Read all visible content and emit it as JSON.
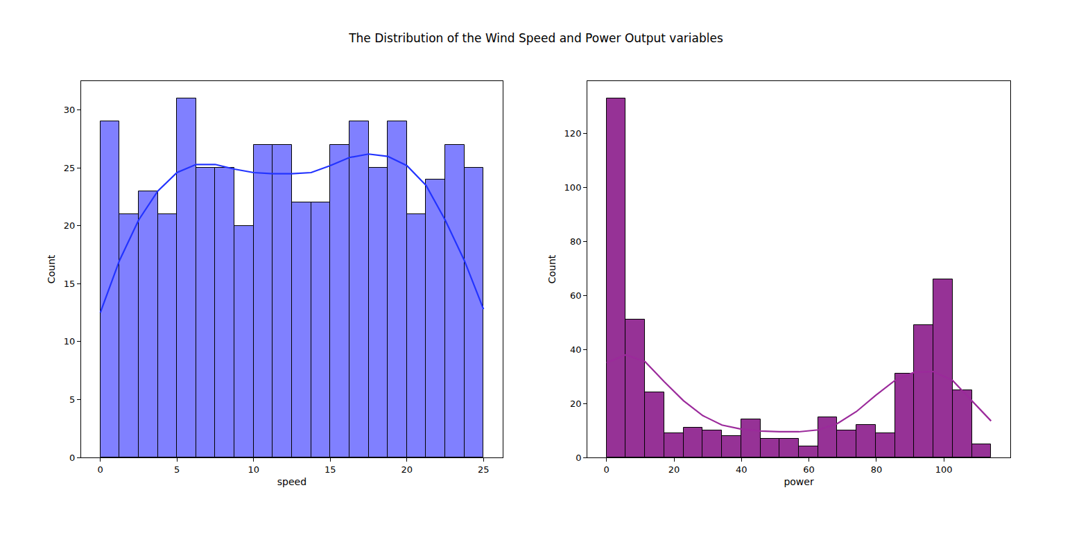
{
  "title": "The Distribution of the Wind Speed and Power Output variables",
  "chart_data": [
    {
      "type": "histogram",
      "x_label": "speed",
      "y_label": "Count",
      "bins": [
        0,
        1.25,
        2.5,
        3.75,
        5,
        6.25,
        7.5,
        8.75,
        10,
        11.25,
        12.5,
        13.75,
        15,
        16.25,
        17.5,
        18.75,
        20,
        21.25,
        22.5,
        23.75,
        25
      ],
      "counts": [
        29,
        21,
        23,
        21,
        31,
        25,
        25,
        20,
        27,
        27,
        22,
        22,
        27,
        29,
        25,
        29,
        21,
        24,
        27,
        25
      ],
      "color": "#8080ff",
      "xlim": [
        -1.25,
        26.25
      ],
      "xticks": [
        0,
        5,
        10,
        15,
        20,
        25
      ],
      "ylim": [
        0,
        32.5
      ],
      "yticks": [
        0,
        5,
        10,
        15,
        20,
        25,
        30
      ],
      "grid": false,
      "series": [
        {
          "type": "line",
          "color": "#2233ff",
          "x": [
            0,
            1.25,
            2.5,
            3.75,
            5,
            6.25,
            7.5,
            8.75,
            10,
            11.25,
            12.5,
            13.75,
            15,
            16.25,
            17.5,
            18.75,
            20,
            21.25,
            22.5,
            23.75,
            25
          ],
          "values": [
            12.5,
            17,
            20.5,
            23,
            24.6,
            25.3,
            25.3,
            24.9,
            24.6,
            24.5,
            24.5,
            24.6,
            25.2,
            25.9,
            26.2,
            26,
            25.2,
            23.5,
            20.5,
            17,
            12.8
          ]
        }
      ]
    },
    {
      "type": "histogram",
      "x_label": "power",
      "y_label": "Count",
      "bins": [
        0,
        5.7,
        11.4,
        17.1,
        22.8,
        28.5,
        34.2,
        39.9,
        45.6,
        51.3,
        57,
        62.7,
        68.4,
        74.1,
        79.8,
        85.5,
        91.2,
        96.9,
        102.6,
        108.3,
        114
      ],
      "counts": [
        133,
        51,
        24,
        9,
        11,
        10,
        8,
        14,
        7,
        7,
        4,
        15,
        10,
        12,
        9,
        31,
        49,
        66,
        25,
        5
      ],
      "color": "#963296",
      "xlim": [
        -5.7,
        119.7
      ],
      "xticks": [
        0,
        20,
        40,
        60,
        80,
        100
      ],
      "ylim": [
        0,
        139.3
      ],
      "yticks": [
        0,
        20,
        40,
        60,
        80,
        100,
        120
      ],
      "grid": false,
      "series": [
        {
          "type": "line",
          "color": "#9b2a9b",
          "x": [
            0,
            5.7,
            11.4,
            17.1,
            22.8,
            28.5,
            34.2,
            39.9,
            45.6,
            51.3,
            57,
            62.7,
            68.4,
            74.1,
            79.8,
            85.5,
            91.2,
            96.9,
            102.6,
            108.3,
            114
          ],
          "values": [
            35,
            38,
            35.5,
            28,
            21,
            15.5,
            12,
            10.5,
            9.8,
            9.5,
            9.5,
            10.2,
            12.5,
            17,
            23,
            28.5,
            31.5,
            31.8,
            28.5,
            21,
            13.5
          ]
        }
      ]
    }
  ]
}
